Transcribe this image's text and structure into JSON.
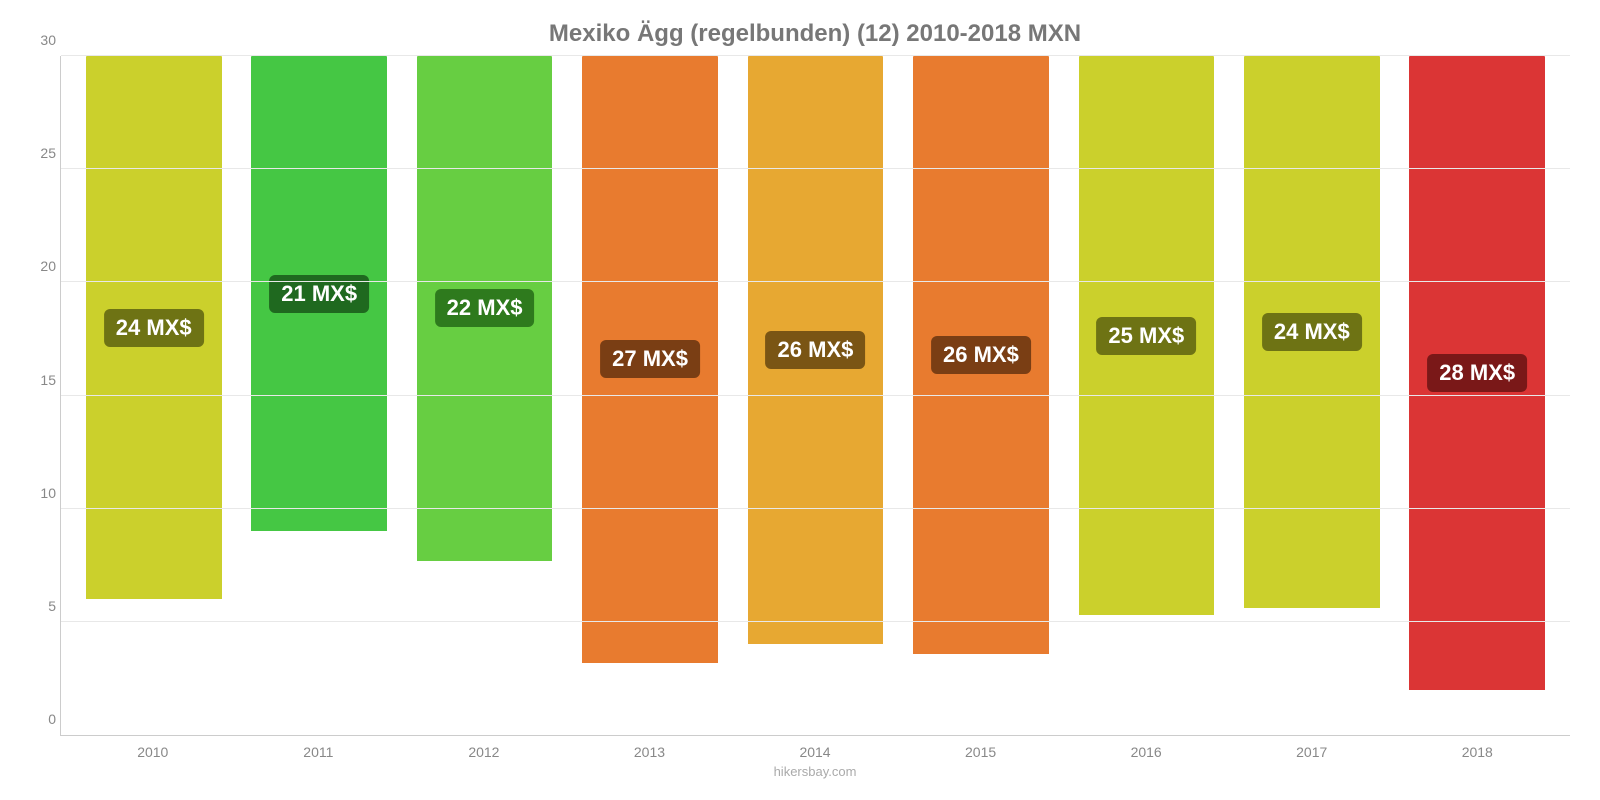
{
  "chart": {
    "type": "bar",
    "title": "Mexiko Ägg (regelbunden) (12) 2010-2018 MXN",
    "title_fontsize": 24,
    "title_color": "#777777",
    "attribution": "hikersbay.com",
    "background_color": "#ffffff",
    "grid_color": "#e8e8e8",
    "axis_color": "#cccccc",
    "tick_label_color": "#888888",
    "tick_fontsize": 14,
    "value_label_fontsize": 22,
    "value_label_text_color": "#ffffff",
    "ylim": [
      0,
      30
    ],
    "ytick_step": 5,
    "yticks": [
      0,
      5,
      10,
      15,
      20,
      25,
      30
    ],
    "bar_width": 0.82,
    "categories": [
      "2010",
      "2011",
      "2012",
      "2013",
      "2014",
      "2015",
      "2016",
      "2017",
      "2018"
    ],
    "values": [
      24.0,
      21.0,
      22.3,
      26.8,
      26.0,
      26.4,
      24.7,
      24.4,
      28.0
    ],
    "value_labels": [
      "24 MX$",
      "21 MX$",
      "22 MX$",
      "27 MX$",
      "26 MX$",
      "26 MX$",
      "25 MX$",
      "24 MX$",
      "28 MX$"
    ],
    "bar_colors": [
      "#cbd02c",
      "#45c744",
      "#67ce42",
      "#e87b2f",
      "#e7a832",
      "#e87b2f",
      "#cbd02c",
      "#cbd02c",
      "#db3535"
    ],
    "label_bg_colors": [
      "#6e7314",
      "#1f691f",
      "#2e7a1d",
      "#7a3e14",
      "#7a5514",
      "#7a3e14",
      "#6e7314",
      "#6e7314",
      "#7a1818"
    ]
  }
}
